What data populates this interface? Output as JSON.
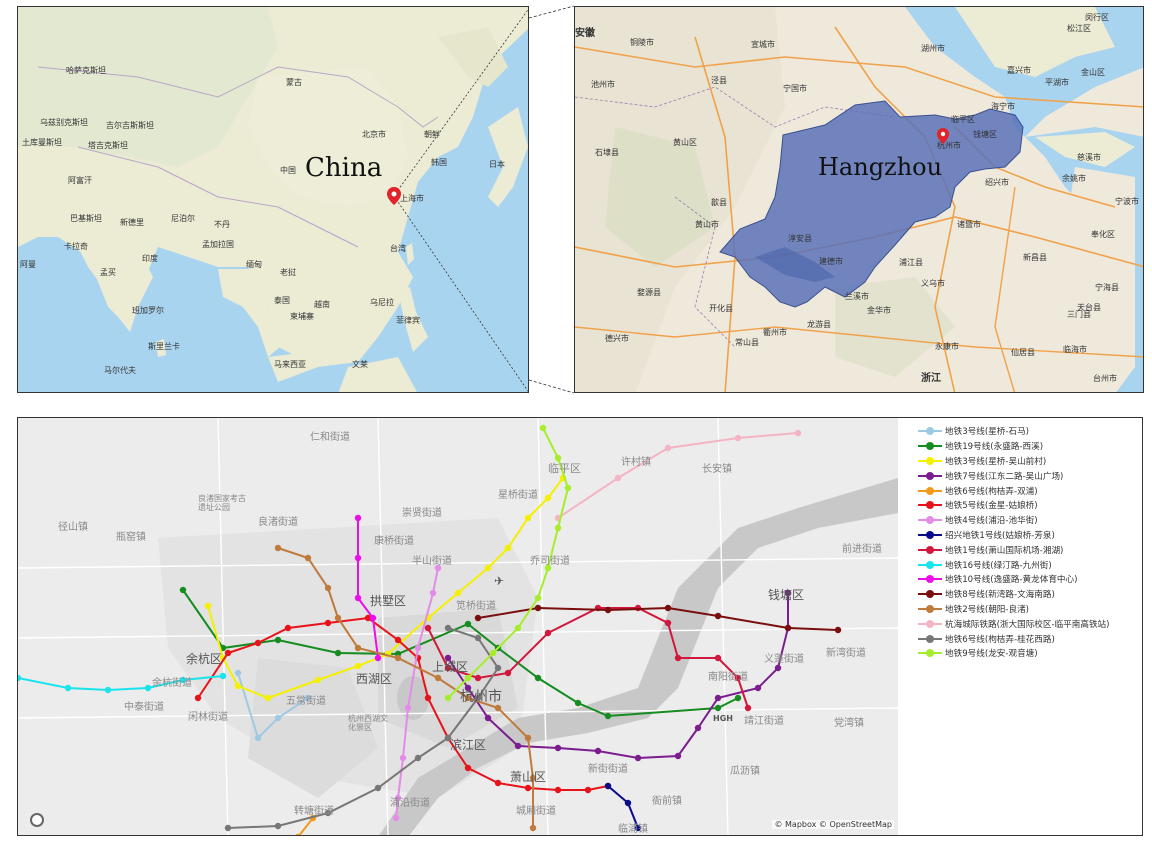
{
  "china_map": {
    "title": "China",
    "labels": [
      "哈萨克斯坦",
      "蒙古",
      "乌兹别克斯坦",
      "吉尔吉斯斯坦",
      "土库曼斯坦",
      "塔吉克斯坦",
      "阿富汗",
      "巴基斯坦",
      "北京市",
      "朝鲜",
      "韩国",
      "日本",
      "中国",
      "新德里",
      "尼泊尔",
      "不丹",
      "卡拉奇",
      "孟加拉国",
      "印度",
      "缅甸",
      "老挝",
      "上海市",
      "台湾",
      "阿曼",
      "孟买",
      "泰国",
      "越南",
      "乌尼拉",
      "班加罗尔",
      "柬埔寨",
      "菲律宾",
      "斯里兰卡",
      "马来西亚",
      "马尔代夫",
      "文莱"
    ],
    "marker": "location-pin-icon"
  },
  "zhejiang_map": {
    "title": "Hangzhou",
    "labels": [
      "安徽",
      "铜陵市",
      "宣城市",
      "湖州市",
      "松江区",
      "闵行区",
      "池州市",
      "泾县",
      "宁国市",
      "嘉兴市",
      "金山区",
      "平湖市",
      "海宁市",
      "黄山区",
      "临平区",
      "杭州市",
      "钱塘区",
      "石埭县",
      "绍兴市",
      "余姚市",
      "慈溪市",
      "歙县",
      "宁波市",
      "黄山市",
      "淳安县",
      "建德市",
      "诸暨市",
      "奉化区",
      "婺源县",
      "浦江县",
      "义乌市",
      "新昌县",
      "开化县",
      "兰溪市",
      "金华市",
      "天台县",
      "宁海县",
      "德兴市",
      "常山县",
      "衢州市",
      "龙游县",
      "永康市",
      "仙居县",
      "三门县",
      "临海市",
      "浙江",
      "台州市",
      "东阳市",
      "嵊州市",
      "柯桥区",
      "上虞区",
      "富阳区",
      "桐庐县",
      "分水镇"
    ],
    "road_shields": [
      "S4",
      "G318",
      "G50",
      "G4013",
      "G9103",
      "G235",
      "G60",
      "G3",
      "S42",
      "G237",
      "G205",
      "G320",
      "S26",
      "G15",
      "G1522",
      "G104"
    ],
    "marker": "location-pin-icon"
  },
  "metro_map": {
    "place_labels": [
      "仁和街道",
      "临平区",
      "许村镇",
      "长安镇",
      "星桥街道",
      "径山镇",
      "良渚街道",
      "良渚国家考古遗址公园",
      "瓶窑镇",
      "康桥街道",
      "崇贤街道",
      "乔司街道",
      "前进街道",
      "半山街道",
      "钱塘区",
      "余杭区",
      "闲林街道",
      "西湖区",
      "中泰街道",
      "余杭街道",
      "拱墅区",
      "笕桥街道",
      "上城区",
      "杭州市",
      "南阳街道",
      "新湾街道",
      "义蓬街道",
      "靖江街道",
      "党湾镇",
      "滨江区",
      "萧山区",
      "新街街道",
      "瓜沥镇",
      "衙前镇",
      "转塘街道",
      "浦沿街道",
      "城厢街道",
      "杭州西湖文化景区",
      "五常街道",
      "临浦镇"
    ],
    "airport_code": "HGH",
    "attribution": "© Mapbox © OpenStreetMap",
    "legend": [
      {
        "label": "地铁3号线(星桥-石马)",
        "color": "#9fc9e3"
      },
      {
        "label": "地铁19号线(永盛路-西溪)",
        "color": "#148c1f"
      },
      {
        "label": "地铁3号线(星桥-吴山前村)",
        "color": "#f4f000"
      },
      {
        "label": "地铁7号线(江东二路-吴山广场)",
        "color": "#7b1d8e"
      },
      {
        "label": "地铁6号线(枸桔弄-双浦)",
        "color": "#f39a1b"
      },
      {
        "label": "地铁5号线(金星-姑娘桥)",
        "color": "#e8131a"
      },
      {
        "label": "地铁4号线(浦沿-池华街)",
        "color": "#e48be8"
      },
      {
        "label": "绍兴地铁1号线(姑娘桥-芳泉)",
        "color": "#0a0a8c"
      },
      {
        "label": "地铁1号线(萧山国际机场-湘湖)",
        "color": "#d1183c"
      },
      {
        "label": "地铁16号线(绿汀路-九州街)",
        "color": "#19e4ec"
      },
      {
        "label": "地铁10号线(逸盛路-黄龙体育中心)",
        "color": "#ec0cec"
      },
      {
        "label": "地铁8号线(新湾路-文海南路)",
        "color": "#7a0d0d"
      },
      {
        "label": "地铁2号线(朝阳-良渚)",
        "color": "#bf7a3c"
      },
      {
        "label": "杭海城际铁路(浙大国际校区-临平南高铁站)",
        "color": "#f5b4c4"
      },
      {
        "label": "地铁6号线(枸桔弄-桂花西路)",
        "color": "#777777"
      },
      {
        "label": "地铁9号线(龙安-观音塘)",
        "color": "#a6ee2c"
      }
    ]
  }
}
